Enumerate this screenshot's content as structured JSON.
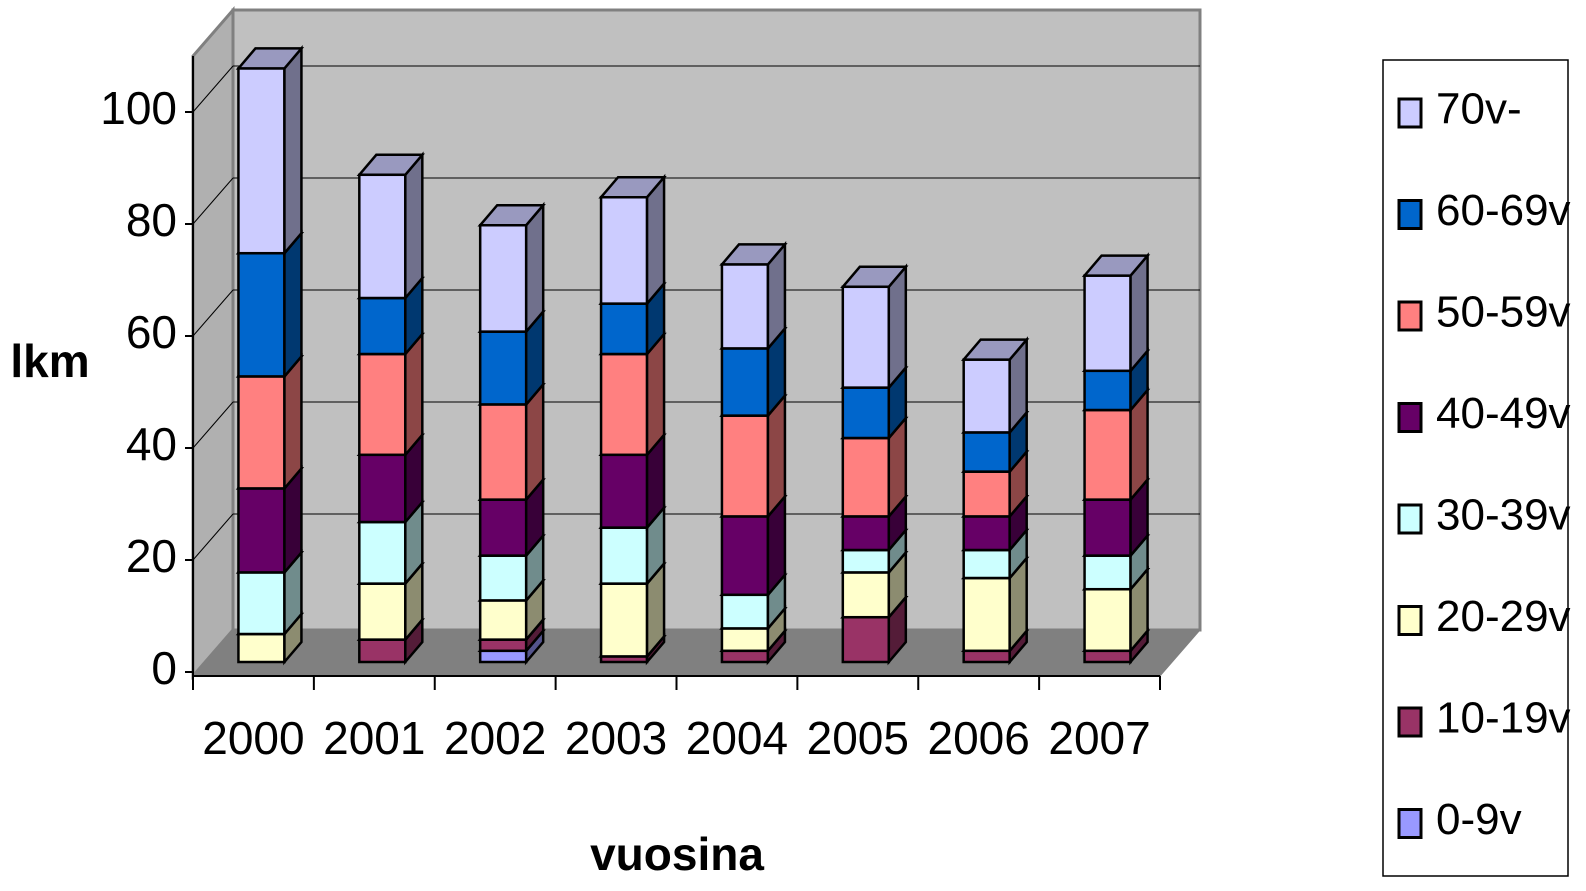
{
  "chart_data": {
    "type": "bar3d_stacked",
    "x_label": "vuosina",
    "y_label": "lkm",
    "categories": [
      "2000",
      "2001",
      "2002",
      "2003",
      "2004",
      "2005",
      "2006",
      "2007"
    ],
    "series": [
      {
        "name": "0-9v",
        "color": "#9999ff",
        "values": [
          0,
          0,
          2,
          0,
          0,
          0,
          0,
          0
        ]
      },
      {
        "name": "10-19v",
        "color": "#993366",
        "values": [
          0,
          4,
          2,
          1,
          2,
          8,
          2,
          2
        ]
      },
      {
        "name": "20-29v",
        "color": "#ffffcc",
        "values": [
          5,
          10,
          7,
          13,
          4,
          8,
          13,
          11
        ]
      },
      {
        "name": "30-39v",
        "color": "#ccffff",
        "values": [
          11,
          11,
          8,
          10,
          6,
          4,
          5,
          6
        ]
      },
      {
        "name": "40-49v",
        "color": "#660066",
        "values": [
          15,
          12,
          10,
          13,
          14,
          6,
          6,
          10
        ]
      },
      {
        "name": "50-59v",
        "color": "#ff8080",
        "values": [
          20,
          18,
          17,
          18,
          18,
          14,
          8,
          16
        ]
      },
      {
        "name": "60-69v",
        "color": "#0066cc",
        "values": [
          22,
          10,
          13,
          9,
          12,
          9,
          7,
          7
        ]
      },
      {
        "name": "70v-",
        "color": "#ccccff",
        "values": [
          33,
          22,
          19,
          19,
          15,
          18,
          13,
          17
        ]
      }
    ],
    "ylim": [
      0,
      110
    ],
    "yticks": [
      0,
      20,
      40,
      60,
      80,
      100
    ],
    "grid": true,
    "legend": "right"
  }
}
